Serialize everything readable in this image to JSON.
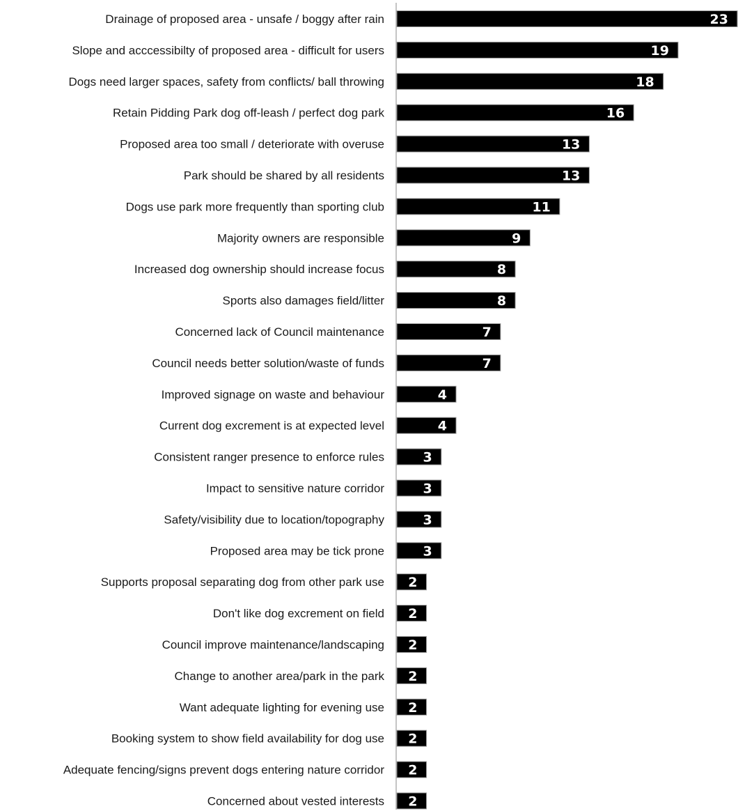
{
  "chart_data": {
    "type": "bar",
    "orientation": "horizontal",
    "categories": [
      "Drainage of proposed area - unsafe / boggy after rain",
      "Slope and acccessibilty of proposed area - difficult for users",
      "Dogs need larger spaces, safety from conflicts/ ball throwing",
      "Retain Pidding Park dog off-leash / perfect dog park",
      "Proposed area too small / deteriorate with overuse",
      "Park should be shared by all residents",
      "Dogs use park more frequently than sporting club",
      "Majority owners are responsible",
      "Increased dog ownership should increase focus",
      "Sports also damages field/litter",
      "Concerned lack of Council maintenance",
      "Council needs better solution/waste of funds",
      "Improved signage on waste and behaviour",
      "Current dog excrement is at expected level",
      "Consistent ranger presence to enforce rules",
      "Impact to sensitive nature corridor",
      "Safety/visibility due to location/topography",
      "Proposed area may be tick prone",
      "Supports proposal separating dog from other park use",
      "Don't like dog excrement on field",
      "Council improve maintenance/landscaping",
      "Change to another area/park in the park",
      "Want adequate lighting for evening use",
      "Booking system to show field availability for dog use",
      "Adequate fencing/signs prevent dogs entering nature corridor",
      "Concerned about vested interests"
    ],
    "values": [
      23,
      19,
      18,
      16,
      13,
      13,
      11,
      9,
      8,
      8,
      7,
      7,
      4,
      4,
      3,
      3,
      3,
      3,
      2,
      2,
      2,
      2,
      2,
      2,
      2,
      2
    ],
    "data_labels": true,
    "xlim": [
      0,
      23
    ],
    "grid": false,
    "legend": "none",
    "bar_color": "#000000",
    "label_color": "#ffffff"
  }
}
